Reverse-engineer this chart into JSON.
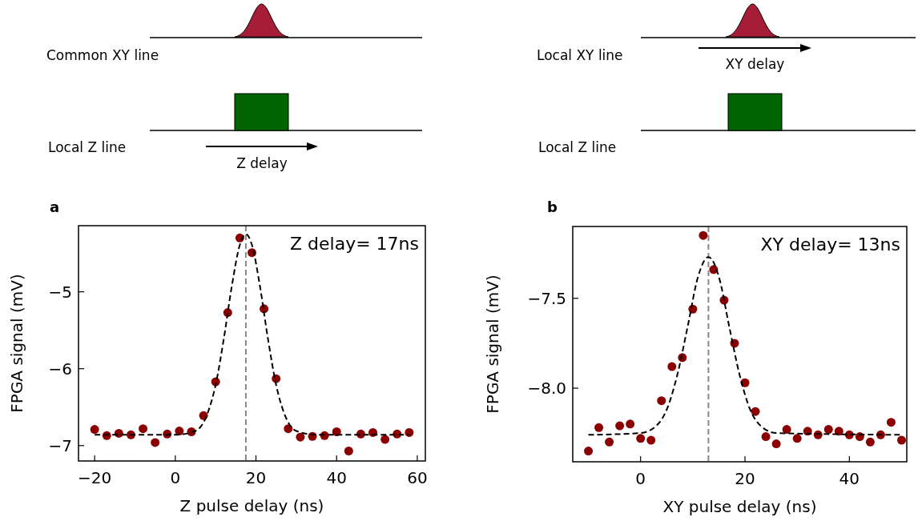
{
  "chart_data": [
    {
      "type": "scatter",
      "title": "a",
      "xlabel": "Z pulse delay (ns)",
      "ylabel": "FPGA signal (mV)",
      "annotations": [
        "Common XY line",
        "Local Z line",
        "Z delay"
      ],
      "xlim": [
        -24,
        62
      ],
      "xticks": [
        {
          "value": -20,
          "label": "−20"
        },
        0,
        20,
        40,
        60
      ],
      "ylim": [
        -7.2,
        -4.14
      ],
      "yticks": [
        {
          "value": -5,
          "label": "−5"
        },
        {
          "value": -6,
          "label": "−6"
        },
        {
          "value": -7,
          "label": "−7"
        }
      ],
      "ref_lines": [
        {
          "axis": "x",
          "value": 17.5,
          "label": "Z delay= 17ns",
          "color": "#888888",
          "line_style": "dashed"
        }
      ],
      "series": [
        {
          "color": "#8b0000",
          "marker": "circle",
          "x": [
            -20,
            -17,
            -14,
            -11,
            -8,
            -5,
            -2,
            1,
            4,
            7,
            10,
            13,
            16,
            19,
            22,
            25,
            28,
            31,
            34,
            37,
            40,
            43,
            46,
            49,
            52,
            55,
            58
          ],
          "values": [
            -6.79,
            -6.87,
            -6.84,
            -6.86,
            -6.78,
            -6.96,
            -6.85,
            -6.81,
            -6.82,
            -6.61,
            -6.17,
            -5.27,
            -4.3,
            -4.49,
            -5.22,
            -6.13,
            -6.78,
            -6.89,
            -6.88,
            -6.87,
            -6.82,
            -7.07,
            -6.85,
            -6.83,
            -6.92,
            -6.85,
            -6.83
          ]
        },
        {
          "type": "line",
          "color": "#000000",
          "line_style": "dashed",
          "x": [
            -20,
            0,
            5,
            8,
            10,
            12,
            14,
            16,
            17.5,
            19,
            21,
            23,
            25,
            27,
            30,
            35,
            58
          ],
          "values": [
            -6.86,
            -6.86,
            -6.81,
            -6.58,
            -6.21,
            -5.62,
            -4.93,
            -4.39,
            -4.25,
            -4.39,
            -4.93,
            -5.62,
            -6.21,
            -6.58,
            -6.81,
            -6.86,
            -6.86
          ]
        }
      ]
    },
    {
      "type": "scatter",
      "title": "b",
      "xlabel": "XY pulse delay (ns)",
      "ylabel": "FPGA signal (mV)",
      "annotations": [
        "Local XY line",
        "Local Z line",
        "XY delay"
      ],
      "xlim": [
        -13,
        51
      ],
      "xticks": [
        0,
        20,
        40
      ],
      "ylim": [
        -8.41,
        -7.1
      ],
      "yticks": [
        {
          "value": -7.5,
          "label": "−7.5"
        },
        {
          "value": -8.0,
          "label": "−8.0"
        }
      ],
      "ref_lines": [
        {
          "axis": "x",
          "value": 13,
          "label": "XY delay= 13ns",
          "color": "#888888",
          "line_style": "dashed"
        }
      ],
      "series": [
        {
          "color": "#8b0000",
          "marker": "circle",
          "x": [
            -10,
            -8,
            -6,
            -4,
            -2,
            0,
            2,
            4,
            6,
            8,
            10,
            12,
            14,
            16,
            18,
            20,
            22,
            24,
            26,
            28,
            30,
            32,
            34,
            36,
            38,
            40,
            42,
            44,
            46,
            48,
            50
          ],
          "values": [
            -8.35,
            -8.22,
            -8.3,
            -8.21,
            -8.2,
            -8.28,
            -8.29,
            -8.07,
            -7.88,
            -7.83,
            -7.56,
            -7.15,
            -7.34,
            -7.51,
            -7.75,
            -7.97,
            -8.13,
            -8.27,
            -8.31,
            -8.23,
            -8.28,
            -8.24,
            -8.26,
            -8.23,
            -8.24,
            -8.26,
            -8.27,
            -8.3,
            -8.26,
            -8.19,
            -8.29
          ]
        },
        {
          "type": "line",
          "color": "#000000",
          "line_style": "dashed",
          "x": [
            -10,
            0,
            3,
            5,
            7,
            9,
            11,
            13,
            15,
            17,
            19,
            21,
            23,
            26,
            50
          ],
          "values": [
            -8.26,
            -8.25,
            -8.21,
            -8.12,
            -7.93,
            -7.66,
            -7.38,
            -7.27,
            -7.38,
            -7.66,
            -7.93,
            -8.12,
            -8.21,
            -8.25,
            -8.26
          ]
        }
      ]
    }
  ]
}
